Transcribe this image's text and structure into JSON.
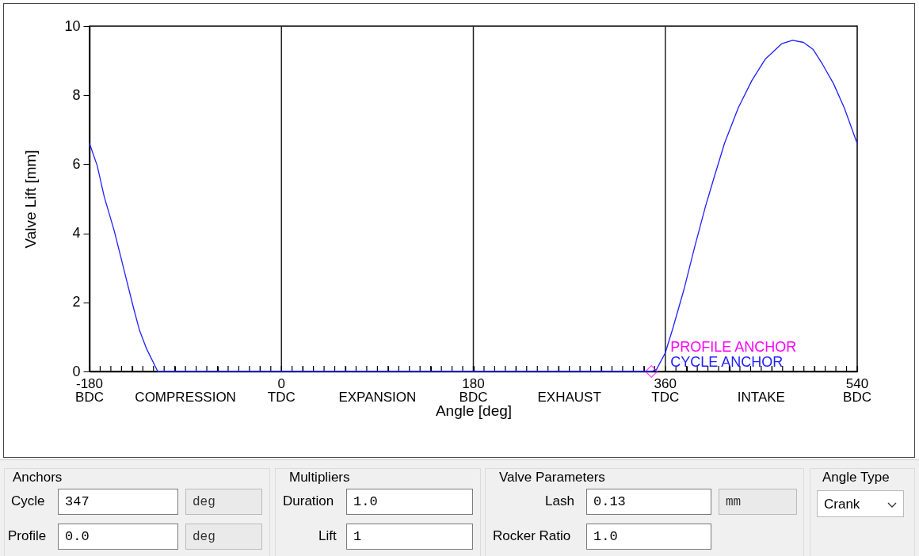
{
  "chart_data": {
    "type": "line",
    "xlabel": "Angle  [deg]",
    "ylabel": "Valve Lift  [mm]",
    "xlim": [
      -180,
      540
    ],
    "ylim": [
      0,
      10
    ],
    "yticks": [
      0,
      2,
      4,
      6,
      8,
      10
    ],
    "xticks": [
      {
        "value": -180,
        "label": "-180\nBDC"
      },
      {
        "value": -170,
        "label": null
      },
      {
        "value": -160,
        "label": null
      },
      {
        "value": -150,
        "label": null
      },
      {
        "value": -140,
        "label": null
      },
      {
        "value": -130,
        "label": null
      },
      {
        "value": -120,
        "label": null
      },
      {
        "value": -110,
        "label": null
      },
      {
        "value": -100,
        "label": null
      },
      {
        "value": -90,
        "label": "COMPRESSION"
      },
      {
        "value": -80,
        "label": null
      },
      {
        "value": -70,
        "label": null
      },
      {
        "value": -60,
        "label": null
      },
      {
        "value": -50,
        "label": null
      },
      {
        "value": -40,
        "label": null
      },
      {
        "value": -30,
        "label": null
      },
      {
        "value": -20,
        "label": null
      },
      {
        "value": -10,
        "label": null
      },
      {
        "value": 0,
        "label": "0\nTDC"
      },
      {
        "value": 10,
        "label": null
      },
      {
        "value": 20,
        "label": null
      },
      {
        "value": 30,
        "label": null
      },
      {
        "value": 40,
        "label": null
      },
      {
        "value": 50,
        "label": null
      },
      {
        "value": 60,
        "label": null
      },
      {
        "value": 70,
        "label": null
      },
      {
        "value": 80,
        "label": null
      },
      {
        "value": 90,
        "label": "EXPANSION"
      },
      {
        "value": 100,
        "label": null
      },
      {
        "value": 110,
        "label": null
      },
      {
        "value": 120,
        "label": null
      },
      {
        "value": 130,
        "label": null
      },
      {
        "value": 140,
        "label": null
      },
      {
        "value": 150,
        "label": null
      },
      {
        "value": 160,
        "label": null
      },
      {
        "value": 170,
        "label": null
      },
      {
        "value": 180,
        "label": "180\nBDC"
      },
      {
        "value": 190,
        "label": null
      },
      {
        "value": 200,
        "label": null
      },
      {
        "value": 210,
        "label": null
      },
      {
        "value": 220,
        "label": null
      },
      {
        "value": 230,
        "label": null
      },
      {
        "value": 240,
        "label": null
      },
      {
        "value": 250,
        "label": null
      },
      {
        "value": 260,
        "label": null
      },
      {
        "value": 270,
        "label": "EXHAUST"
      },
      {
        "value": 280,
        "label": null
      },
      {
        "value": 290,
        "label": null
      },
      {
        "value": 300,
        "label": null
      },
      {
        "value": 310,
        "label": null
      },
      {
        "value": 320,
        "label": null
      },
      {
        "value": 330,
        "label": null
      },
      {
        "value": 340,
        "label": null
      },
      {
        "value": 350,
        "label": null
      },
      {
        "value": 360,
        "label": "360\nTDC"
      },
      {
        "value": 370,
        "label": null
      },
      {
        "value": 380,
        "label": null
      },
      {
        "value": 390,
        "label": null
      },
      {
        "value": 400,
        "label": null
      },
      {
        "value": 410,
        "label": null
      },
      {
        "value": 420,
        "label": null
      },
      {
        "value": 430,
        "label": null
      },
      {
        "value": 440,
        "label": null
      },
      {
        "value": 450,
        "label": "INTAKE"
      },
      {
        "value": 460,
        "label": null
      },
      {
        "value": 470,
        "label": null
      },
      {
        "value": 480,
        "label": null
      },
      {
        "value": 490,
        "label": null
      },
      {
        "value": 500,
        "label": null
      },
      {
        "value": 510,
        "label": null
      },
      {
        "value": 520,
        "label": null
      },
      {
        "value": 530,
        "label": null
      },
      {
        "value": 540,
        "label": "540\nBDC"
      }
    ],
    "series": [
      {
        "type": "scatter",
        "marker": "diamond",
        "color": "#ff00ff",
        "x": [
          347
        ],
        "values": [
          0
        ]
      },
      {
        "type": "line",
        "color": "#2020ff",
        "x": [
          -180,
          -172.8,
          -166.2,
          -156.9,
          -150.3,
          -145,
          -138.4,
          -133,
          -126.4,
          -116,
          347,
          351.8,
          360,
          367.1,
          377.3,
          387.6,
          397.8,
          405.4,
          415.6,
          428.4,
          441.1,
          453.9,
          469.2,
          479.4,
          489.6,
          498.5,
          507.4,
          517.7,
          527.9,
          540
        ],
        "values": [
          6.6,
          5.96,
          5.06,
          4.08,
          3.27,
          2.61,
          1.8,
          1.18,
          0.65,
          0,
          0,
          0.06,
          0.54,
          1.25,
          2.35,
          3.61,
          4.79,
          5.58,
          6.61,
          7.63,
          8.42,
          9.05,
          9.49,
          9.59,
          9.53,
          9.33,
          8.9,
          8.34,
          7.63,
          6.6
        ]
      }
    ],
    "ref_lines": [
      {
        "axis": "x",
        "value": 0,
        "color": "#222222"
      },
      {
        "axis": "x",
        "value": 180,
        "color": "#222222"
      },
      {
        "axis": "x",
        "value": 360,
        "color": "#222222"
      }
    ],
    "grid": false,
    "annotations": [
      {
        "text": "PROFILE ANCHOR",
        "x": 347,
        "y": 0
      },
      {
        "text": "CYCLE ANCHOR",
        "x": 347,
        "y": 0
      },
      "Anchors",
      "Cycle",
      "347",
      "deg",
      "Profile",
      "0.0",
      "deg",
      "Multipliers",
      "Duration",
      "1.0",
      "Lift",
      "1",
      "Valve Parameters",
      "Lash",
      "0.13",
      "mm",
      "Rocker Ratio",
      "1.0",
      "Angle Type",
      "Crank"
    ]
  }
}
